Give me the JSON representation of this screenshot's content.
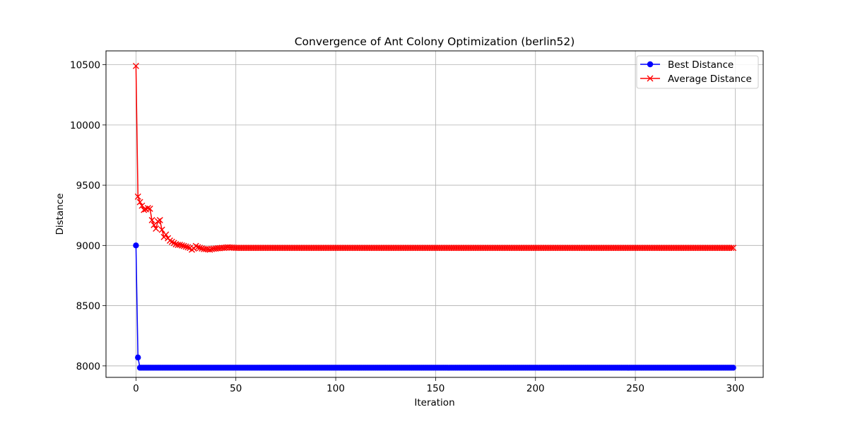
{
  "chart_data": {
    "type": "line",
    "title": "Convergence of Ant Colony Optimization (berlin52)",
    "xlabel": "Iteration",
    "ylabel": "Distance",
    "xlim": [
      -15,
      314
    ],
    "ylim": [
      7905,
      10615
    ],
    "x_ticks": [
      0,
      50,
      100,
      150,
      200,
      250,
      300
    ],
    "y_ticks": [
      8000,
      8500,
      9000,
      9500,
      10000,
      10500
    ],
    "grid": true,
    "legend_position": "top-right",
    "x": {
      "start": 0,
      "end": 299,
      "step": 1
    },
    "series": [
      {
        "name": "Best Distance",
        "color": "#0000ff",
        "marker": "circle",
        "values_head": [
          9000,
          8070
        ],
        "tail_value": 7985
      },
      {
        "name": "Average Distance",
        "color": "#ff0000",
        "marker": "x",
        "values_head": [
          10490,
          9405,
          9360,
          9330,
          9295,
          9300,
          9310,
          9305,
          9210,
          9170,
          9140,
          9200,
          9210,
          9130,
          9070,
          9090,
          9060,
          9040,
          9030,
          9020,
          9010,
          9005,
          9005,
          9000,
          8995,
          8990,
          8985,
          8980,
          8965,
          8975,
          8995,
          8985,
          8980,
          8975,
          8970,
          8970,
          8968,
          8965,
          8970,
          8973,
          8975,
          8977,
          8978,
          8980,
          8980,
          8982,
          8984,
          8983,
          8982,
          8981,
          8980
        ],
        "tail_value": 8980
      }
    ]
  }
}
